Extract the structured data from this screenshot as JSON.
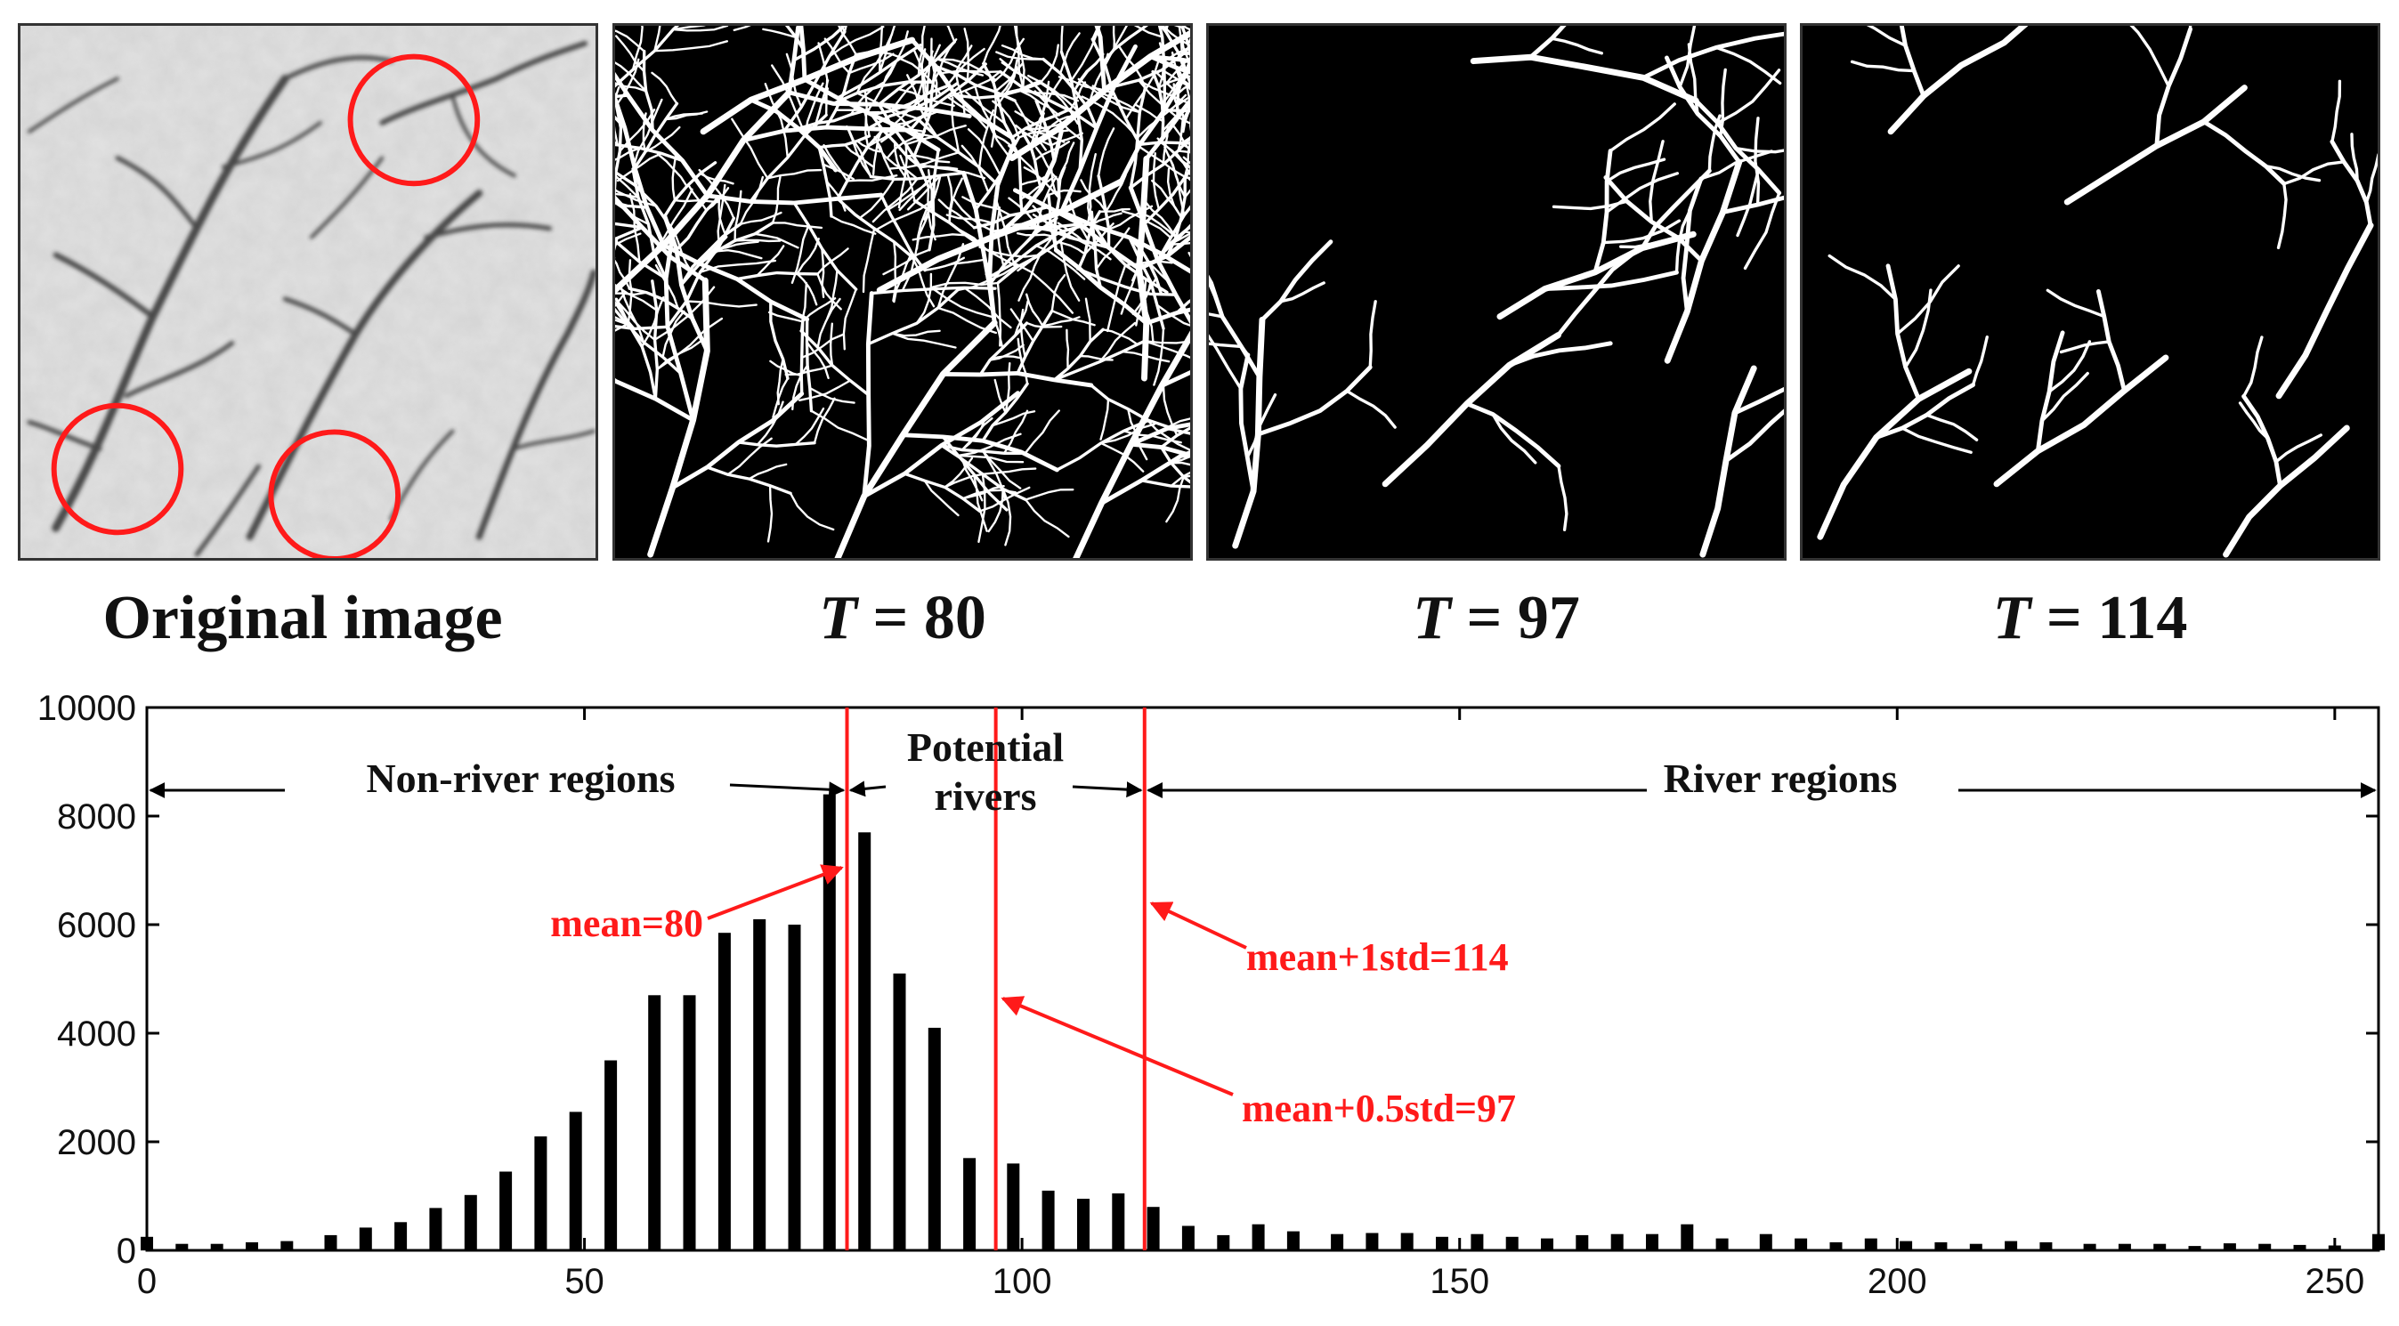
{
  "panels": [
    {
      "id": "original",
      "caption_text": "Original image",
      "caption_prefix": "",
      "caption_value": ""
    },
    {
      "id": "t80",
      "caption_text": "",
      "caption_prefix": "T",
      "caption_value": " = 80"
    },
    {
      "id": "t97",
      "caption_text": "",
      "caption_prefix": "T",
      "caption_value": " = 97"
    },
    {
      "id": "t114",
      "caption_text": "",
      "caption_prefix": "T",
      "caption_value": " = 114"
    }
  ],
  "chart_data": {
    "type": "bar",
    "title": "",
    "xlabel": "",
    "ylabel": "",
    "xlim": [
      0,
      255
    ],
    "ylim": [
      0,
      10000
    ],
    "xticks": [
      0,
      50,
      100,
      150,
      200,
      250
    ],
    "yticks": [
      0,
      2000,
      4000,
      6000,
      8000,
      10000
    ],
    "grid": false,
    "x": [
      0,
      4,
      8,
      12,
      16,
      21,
      25,
      29,
      33,
      37,
      41,
      45,
      49,
      53,
      58,
      62,
      66,
      70,
      74,
      78,
      82,
      86,
      90,
      94,
      99,
      103,
      107,
      111,
      115,
      119,
      123,
      127,
      131,
      136,
      140,
      144,
      148,
      152,
      156,
      160,
      164,
      168,
      172,
      176,
      180,
      185,
      189,
      193,
      197,
      201,
      205,
      209,
      213,
      217,
      222,
      226,
      230,
      234,
      238,
      242,
      246,
      250,
      255
    ],
    "values": [
      250,
      120,
      120,
      150,
      170,
      280,
      420,
      520,
      780,
      1020,
      1450,
      2100,
      2550,
      3500,
      4700,
      4700,
      5850,
      6100,
      6000,
      8400,
      7700,
      5100,
      4100,
      1700,
      1600,
      1100,
      950,
      1050,
      800,
      450,
      280,
      480,
      350,
      300,
      320,
      320,
      250,
      300,
      250,
      220,
      280,
      300,
      300,
      480,
      220,
      300,
      220,
      150,
      220,
      170,
      150,
      120,
      170,
      150,
      120,
      120,
      120,
      80,
      130,
      120,
      100,
      90,
      300
    ],
    "vlines": [
      {
        "x": 80,
        "label": "mean=80"
      },
      {
        "x": 97,
        "label": "mean+0.5std=97"
      },
      {
        "x": 114,
        "label": "mean+1std=114"
      }
    ],
    "regions": [
      {
        "label": "Non-river regions"
      },
      {
        "label_line1": "Potential",
        "label_line2": "rivers"
      },
      {
        "label": "River regions"
      }
    ],
    "colors": {
      "bars": "#000000",
      "vlines": "#ff1a1a",
      "annotations": "#ff1a1a"
    }
  }
}
